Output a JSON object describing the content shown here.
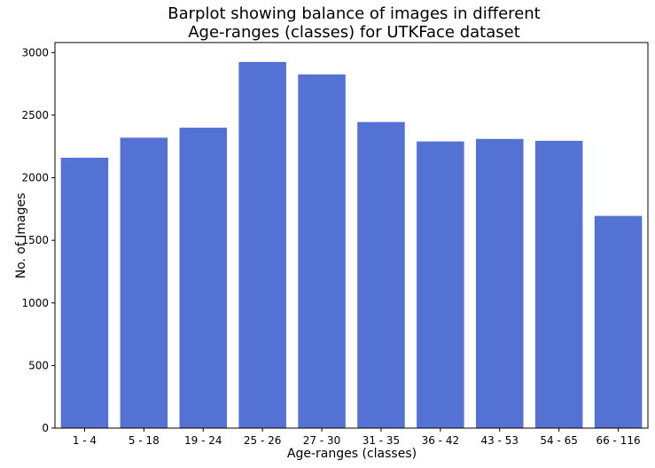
{
  "chart_data": {
    "type": "bar",
    "title": [
      "Barplot showing balance of images in different",
      "Age-ranges (classes) for UTKFace dataset"
    ],
    "xlabel": "Age-ranges (classes)",
    "ylabel": "No. of Images",
    "categories": [
      "1 - 4",
      "5 - 18",
      "19 - 24",
      "25 - 26",
      "27 - 30",
      "31 - 35",
      "36 - 42",
      "43 - 53",
      "54 - 65",
      "66 - 116"
    ],
    "values": [
      2160,
      2320,
      2400,
      2925,
      2825,
      2445,
      2290,
      2310,
      2295,
      1695
    ],
    "ylim": [
      0,
      3080
    ],
    "yticks": [
      0,
      500,
      1000,
      1500,
      2000,
      2500,
      3000
    ],
    "bar_color": "#5472d3",
    "grid": false,
    "legend": "none"
  }
}
